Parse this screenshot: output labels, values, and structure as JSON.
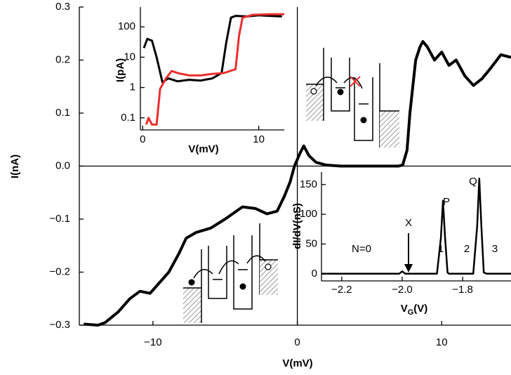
{
  "chart_data": [
    {
      "type": "line",
      "xlabel": "V(mV)",
      "ylabel": "I(nA)",
      "xlim": [
        -15.1,
        14.8
      ],
      "ylim": [
        -0.3,
        0.3
      ],
      "xticks": [
        {
          "value": -10,
          "label": "−10"
        },
        0,
        10
      ],
      "yticks": [
        0.3,
        0.2,
        0.1,
        {
          "value": 0,
          "label": "0.0"
        },
        {
          "value": -0.1,
          "label": "−0.1"
        },
        {
          "value": -0.2,
          "label": "−0.2"
        },
        {
          "value": -0.3,
          "label": "−0.3"
        }
      ],
      "color": "#000000",
      "x": [
        -14.8,
        -13.8,
        -13.3,
        -12.4,
        -11.6,
        -10.9,
        -10.2,
        -8.9,
        -8.2,
        -7.7,
        -7.0,
        -6.0,
        -5.0,
        -3.8,
        -2.9,
        -2.1,
        -1.4,
        -0.9,
        -0.5,
        -0.2,
        0.2,
        0.45,
        0.8,
        1.3,
        2.0,
        3.0,
        5.0,
        7.0,
        7.3,
        7.6,
        7.8,
        8.0,
        8.2,
        8.5,
        8.7,
        9.0,
        9.5,
        10.0,
        10.5,
        11.0,
        11.6,
        12.2,
        12.8,
        13.4,
        14.1,
        14.8
      ],
      "values": [
        -0.298,
        -0.3,
        -0.295,
        -0.275,
        -0.25,
        -0.236,
        -0.24,
        -0.2,
        -0.165,
        -0.136,
        -0.125,
        -0.117,
        -0.1,
        -0.077,
        -0.08,
        -0.09,
        -0.085,
        -0.057,
        -0.03,
        0.0,
        0.025,
        0.038,
        0.02,
        0.007,
        0.002,
        0.0,
        0.0,
        0.0,
        0.002,
        0.03,
        0.1,
        0.15,
        0.2,
        0.225,
        0.235,
        0.225,
        0.2,
        0.215,
        0.19,
        0.2,
        0.17,
        0.152,
        0.165,
        0.185,
        0.21,
        0.205
      ]
    },
    {
      "type": "line",
      "xlabel": "V(mV)",
      "ylabel": "I(pA)",
      "yscale": "log",
      "xlim": [
        -0.2,
        12.2
      ],
      "ylim": [
        0.04,
        450
      ],
      "xticks": [
        0,
        10
      ],
      "yticks": [
        0.1,
        1,
        10,
        100
      ],
      "series": [
        {
          "color": "#000000",
          "x": [
            0.1,
            0.4,
            0.8,
            1.2,
            1.7,
            2.2,
            3.0,
            4.0,
            5.0,
            6.0,
            6.8,
            7.2,
            7.6,
            8.0,
            9.0,
            10.0,
            11.0,
            12.0
          ],
          "values": [
            20,
            40,
            35,
            10,
            1.5,
            2,
            1.6,
            1.8,
            1.7,
            2,
            3,
            30,
            200,
            230,
            220,
            240,
            230,
            220
          ]
        },
        {
          "color": "#e8302e",
          "x": [
            0.3,
            0.5,
            0.8,
            1.2,
            1.5,
            2.0,
            2.5,
            3.0,
            4.0,
            5.0,
            6.0,
            7.0,
            8.0,
            8.3,
            8.6,
            9.5,
            11.0,
            12.2
          ],
          "values": [
            0.06,
            0.1,
            0.06,
            0.06,
            0.9,
            2,
            3.5,
            3,
            2.5,
            2.5,
            2.8,
            3,
            4,
            50,
            200,
            250,
            260,
            260
          ]
        }
      ]
    },
    {
      "type": "line",
      "xlabel": [
        "V",
        "G",
        "(V)"
      ],
      "ylabel": "dI/dV(nS)",
      "xlim": [
        -2.267,
        -1.64
      ],
      "ylim": [
        -12,
        171
      ],
      "xticks": [
        {
          "value": -2.2,
          "label": "−2.2"
        },
        {
          "value": -2.0,
          "label": "−2.0"
        },
        {
          "value": -1.8,
          "label": "−1.8"
        }
      ],
      "yticks": [
        0,
        50,
        100,
        150
      ],
      "color": "#000000",
      "x": [
        -2.267,
        -2.01,
        -2.0,
        -1.99,
        -1.885,
        -1.872,
        -1.865,
        -1.858,
        -1.85,
        -1.845,
        -1.765,
        -1.752,
        -1.745,
        -1.738,
        -1.73,
        -1.72,
        -1.64
      ],
      "values": [
        0,
        0,
        4,
        0,
        0,
        60,
        123,
        60,
        2,
        0,
        0,
        80,
        160,
        80,
        2,
        0,
        0
      ],
      "annotations": [
        "N=0",
        "X",
        "P",
        "Q",
        "1",
        "2",
        "3"
      ]
    }
  ]
}
